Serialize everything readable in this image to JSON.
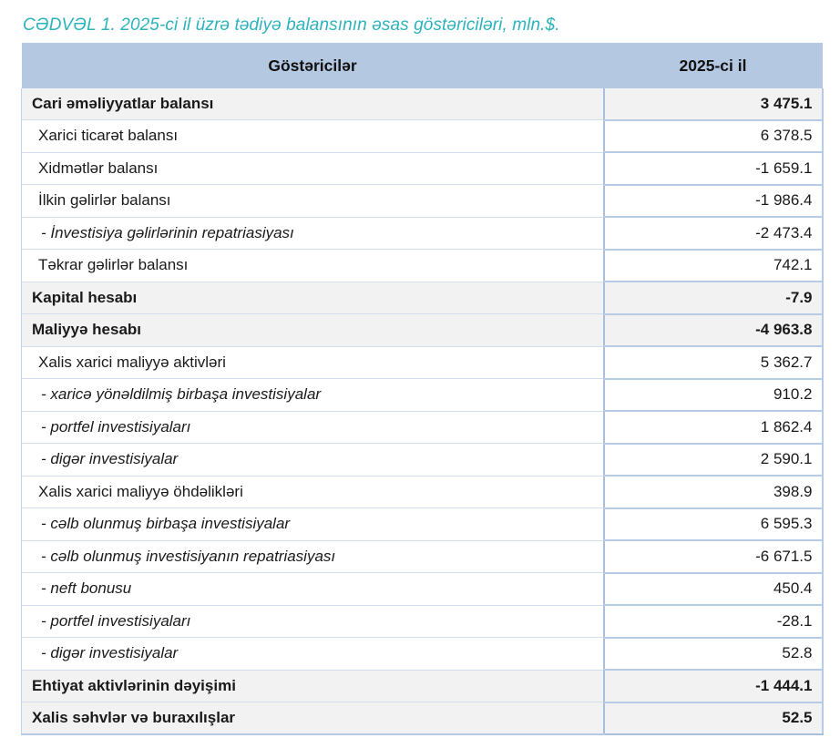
{
  "page": {
    "title": "CƏDVƏL 1. 2025-ci il üzrə tədiyə balansının əsas göstəriciləri, mln.$."
  },
  "colors": {
    "title_text": "#2db3bc",
    "header_bg": "#b4c8e2",
    "section_row_bg": "#f2f2f2",
    "value_column_border": "#a9c0dd",
    "label_row_border": "#d2ddee"
  },
  "table": {
    "columns": [
      {
        "label": "Göstəricilər"
      },
      {
        "label": "2025-ci il"
      }
    ],
    "rows": [
      {
        "label": "Cari əməliyyatlar balansı",
        "value": "3 475.1",
        "style": "section"
      },
      {
        "label": "Xarici ticarət balansı",
        "value": "6 378.5",
        "style": "normal"
      },
      {
        "label": "Xidmətlər balansı",
        "value": "-1 659.1",
        "style": "normal"
      },
      {
        "label": "İlkin gəlirlər balansı",
        "value": "-1 986.4",
        "style": "normal"
      },
      {
        "label": "- İnvestisiya gəlirlərinin repatriasiyası",
        "value": "-2 473.4",
        "style": "sub"
      },
      {
        "label": "Təkrar gəlirlər balansı",
        "value": "742.1",
        "style": "normal"
      },
      {
        "label": "Kapital hesabı",
        "value": "-7.9",
        "style": "section"
      },
      {
        "label": "Maliyyə hesabı",
        "value": "-4 963.8",
        "style": "section"
      },
      {
        "label": "Xalis xarici maliyyə aktivləri",
        "value": "5 362.7",
        "style": "normal"
      },
      {
        "label": "- xaricə yönəldilmiş birbaşa investisiyalar",
        "value": "910.2",
        "style": "sub"
      },
      {
        "label": "- portfel investisiyaları",
        "value": "1 862.4",
        "style": "sub"
      },
      {
        "label": "- digər investisiyalar",
        "value": "2 590.1",
        "style": "sub"
      },
      {
        "label": "Xalis xarici maliyyə öhdəlikləri",
        "value": "398.9",
        "style": "normal"
      },
      {
        "label": "- cəlb olunmuş birbaşa investisiyalar",
        "value": "6 595.3",
        "style": "sub"
      },
      {
        "label": "- cəlb olunmuş investisiyanın repatriasiyası",
        "value": "-6 671.5",
        "style": "sub"
      },
      {
        "label": "- neft bonusu",
        "value": "450.4",
        "style": "sub"
      },
      {
        "label": "- portfel investisiyaları",
        "value": "-28.1",
        "style": "sub"
      },
      {
        "label": "- digər investisiyalar",
        "value": "52.8",
        "style": "sub"
      },
      {
        "label": "Ehtiyat aktivlərinin dəyişimi",
        "value": "-1 444.1",
        "style": "section"
      },
      {
        "label": "Xalis səhvlər və buraxılışlar",
        "value": "52.5",
        "style": "section"
      }
    ]
  }
}
